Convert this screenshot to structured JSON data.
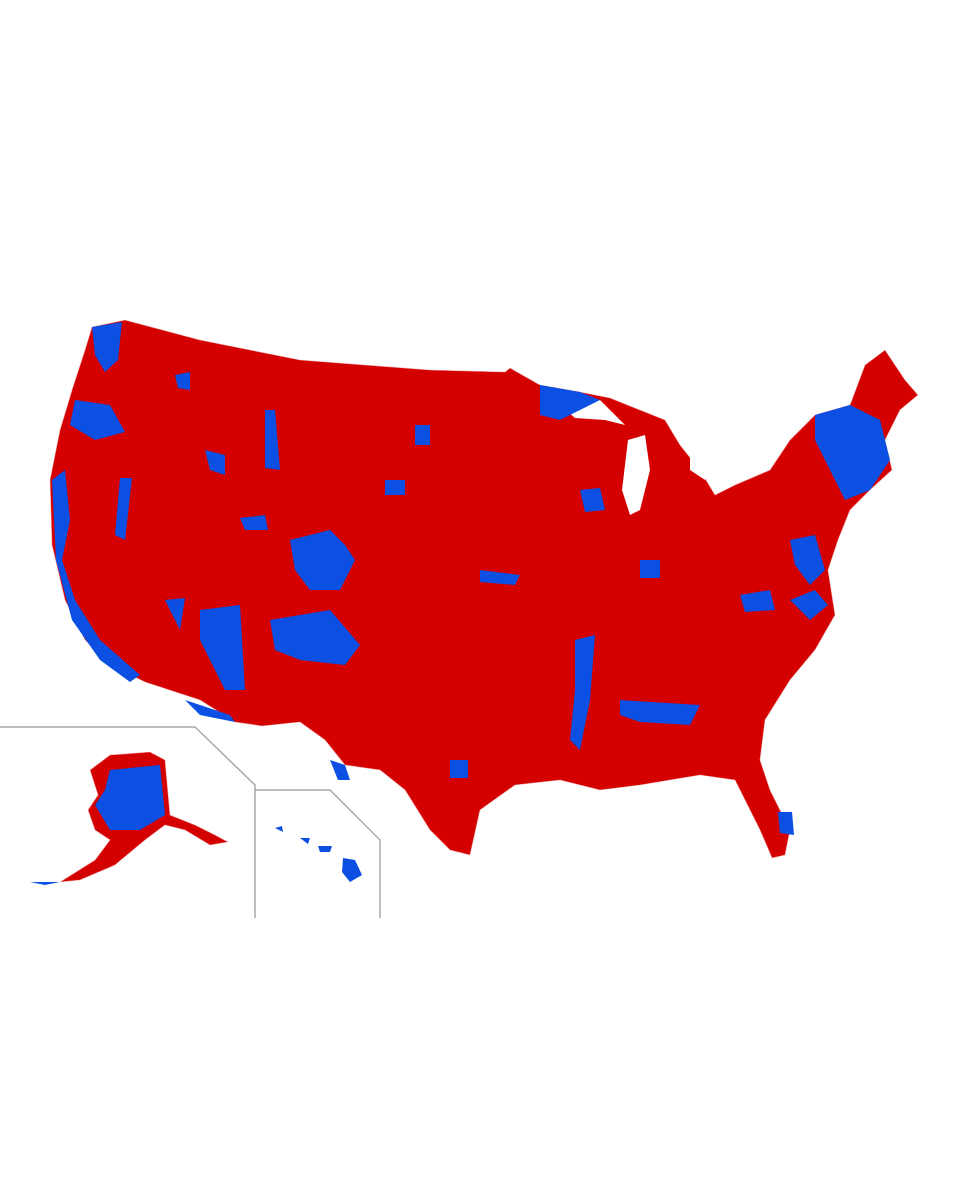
{
  "map": {
    "region_color": "#d40000",
    "highlight_color": "#0b50e3",
    "inset_border_color": "#a8a8a8",
    "background": "#ffffff"
  }
}
